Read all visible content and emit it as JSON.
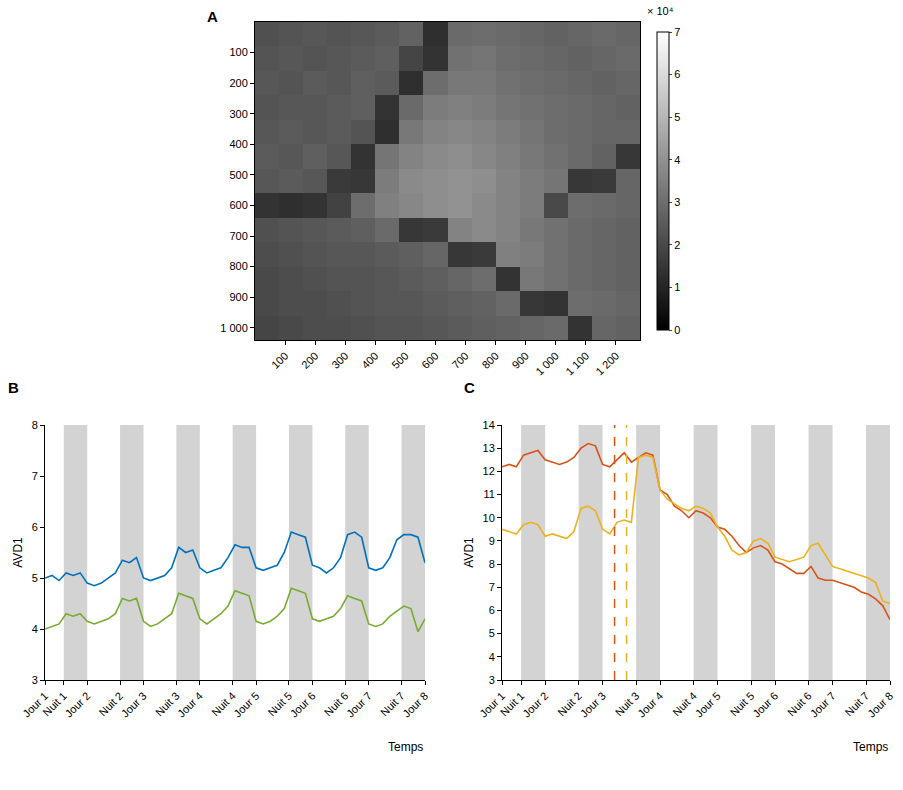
{
  "chart_data": [
    {
      "type": "heatmap",
      "title": "A",
      "x": [
        40,
        120,
        200,
        280,
        360,
        440,
        520,
        600,
        680,
        760,
        840,
        920,
        1000,
        1080,
        1160,
        1240
      ],
      "y": [
        40,
        120,
        200,
        280,
        360,
        440,
        520,
        600,
        680,
        760,
        840,
        920,
        1000
      ],
      "z": [
        [
          2.2,
          2.3,
          2.4,
          2.3,
          2.4,
          2.5,
          2.7,
          1.3,
          2.9,
          3.0,
          2.9,
          2.8,
          2.7,
          2.8,
          2.9,
          2.8
        ],
        [
          2.3,
          2.4,
          2.3,
          2.4,
          2.5,
          2.6,
          1.9,
          1.4,
          3.1,
          3.2,
          3.0,
          2.9,
          2.8,
          2.7,
          2.8,
          2.9
        ],
        [
          2.4,
          2.3,
          2.5,
          2.4,
          2.6,
          2.5,
          1.3,
          3.0,
          3.3,
          3.3,
          3.1,
          3.0,
          2.9,
          2.8,
          2.7,
          2.8
        ],
        [
          2.3,
          2.4,
          2.4,
          2.5,
          2.6,
          1.4,
          2.9,
          3.4,
          3.5,
          3.4,
          3.2,
          3.1,
          3.0,
          2.9,
          2.8,
          2.7
        ],
        [
          2.4,
          2.5,
          2.4,
          2.5,
          2.3,
          1.3,
          3.3,
          3.6,
          3.7,
          3.6,
          3.4,
          3.2,
          3.0,
          2.9,
          2.8,
          2.8
        ],
        [
          2.5,
          2.4,
          2.6,
          2.4,
          1.4,
          3.2,
          3.6,
          3.8,
          3.9,
          3.7,
          3.5,
          3.3,
          3.1,
          2.9,
          2.7,
          1.5
        ],
        [
          2.4,
          2.5,
          2.4,
          1.6,
          1.5,
          3.4,
          3.8,
          3.9,
          4.0,
          3.9,
          3.6,
          3.4,
          3.2,
          1.5,
          1.6,
          2.8
        ],
        [
          1.4,
          1.3,
          1.4,
          1.8,
          3.0,
          3.5,
          3.7,
          3.9,
          4.0,
          3.8,
          3.6,
          3.4,
          2.0,
          3.0,
          2.9,
          2.8
        ],
        [
          2.2,
          2.3,
          2.4,
          2.5,
          2.6,
          2.9,
          1.5,
          1.6,
          3.6,
          3.8,
          3.6,
          3.3,
          3.1,
          2.9,
          2.8,
          2.7
        ],
        [
          2.1,
          2.2,
          2.3,
          2.4,
          2.4,
          2.5,
          2.6,
          2.8,
          1.5,
          1.6,
          3.5,
          3.4,
          3.1,
          2.9,
          2.8,
          2.7
        ],
        [
          2.0,
          2.1,
          2.2,
          2.3,
          2.3,
          2.4,
          2.5,
          2.6,
          2.8,
          3.0,
          1.4,
          3.3,
          3.1,
          2.9,
          2.8,
          2.7
        ],
        [
          2.0,
          2.1,
          2.1,
          2.2,
          2.3,
          2.4,
          2.4,
          2.5,
          2.6,
          2.7,
          2.9,
          1.5,
          1.4,
          3.0,
          2.9,
          2.8
        ],
        [
          1.9,
          2.0,
          2.1,
          2.1,
          2.2,
          2.3,
          2.3,
          2.4,
          2.5,
          2.6,
          2.7,
          2.8,
          2.9,
          1.4,
          2.8,
          2.7
        ]
      ],
      "colorbar": {
        "range": [
          0,
          7
        ],
        "ticks": [
          0,
          1,
          2,
          3,
          4,
          5,
          6,
          7
        ],
        "label": "× 10⁴"
      },
      "xlim": [
        0,
        1280
      ],
      "xticks": [
        100,
        200,
        300,
        400,
        500,
        600,
        700,
        800,
        900,
        {
          "value": 1000,
          "label": "1 000"
        },
        {
          "value": 1100,
          "label": "1 100"
        },
        {
          "value": 1200,
          "label": "1 200"
        }
      ],
      "ylim": [
        1040,
        0
      ],
      "yticks": [
        100,
        200,
        300,
        400,
        500,
        600,
        700,
        800,
        900,
        {
          "value": 1000,
          "label": "1 000"
        }
      ],
      "grid": false
    },
    {
      "type": "line",
      "title": "B",
      "x_label": "Temps",
      "y_label": "AVD1",
      "x": [
        0,
        3,
        6,
        9,
        12,
        15,
        18,
        21,
        24,
        27,
        30,
        33,
        36,
        39,
        42,
        45,
        48,
        51,
        54,
        57,
        60,
        63,
        66,
        69,
        72,
        75,
        78,
        81,
        84,
        87,
        90,
        93,
        96,
        99,
        102,
        105,
        108,
        111,
        114,
        117,
        120,
        123,
        126,
        129,
        132,
        135,
        138,
        141,
        144,
        147,
        150,
        153,
        156,
        159,
        162
      ],
      "series": [
        {
          "color": "#0072BD",
          "values": [
            5.0,
            5.05,
            4.95,
            5.1,
            5.05,
            5.1,
            4.9,
            4.85,
            4.9,
            5.0,
            5.1,
            5.35,
            5.3,
            5.4,
            5.0,
            4.95,
            5.0,
            5.05,
            5.2,
            5.6,
            5.5,
            5.55,
            5.2,
            5.1,
            5.15,
            5.2,
            5.4,
            5.65,
            5.6,
            5.6,
            5.2,
            5.15,
            5.2,
            5.25,
            5.5,
            5.9,
            5.85,
            5.8,
            5.25,
            5.2,
            5.1,
            5.2,
            5.4,
            5.85,
            5.9,
            5.8,
            5.2,
            5.15,
            5.2,
            5.4,
            5.75,
            5.85,
            5.85,
            5.8,
            5.3
          ]
        },
        {
          "color": "#77AC30",
          "values": [
            4.0,
            4.05,
            4.1,
            4.3,
            4.25,
            4.3,
            4.15,
            4.1,
            4.15,
            4.2,
            4.3,
            4.6,
            4.55,
            4.6,
            4.15,
            4.05,
            4.1,
            4.2,
            4.3,
            4.7,
            4.65,
            4.6,
            4.2,
            4.1,
            4.2,
            4.3,
            4.45,
            4.75,
            4.7,
            4.65,
            4.15,
            4.1,
            4.15,
            4.25,
            4.4,
            4.8,
            4.75,
            4.7,
            4.2,
            4.15,
            4.2,
            4.25,
            4.4,
            4.65,
            4.6,
            4.55,
            4.1,
            4.05,
            4.1,
            4.25,
            4.35,
            4.45,
            4.4,
            3.95,
            4.2
          ]
        }
      ],
      "night_bands": [
        [
          8,
          18
        ],
        [
          32,
          42
        ],
        [
          56,
          66
        ],
        [
          80,
          90
        ],
        [
          104,
          114
        ],
        [
          128,
          138
        ],
        [
          152,
          162
        ]
      ],
      "xlim": [
        0,
        162
      ],
      "xticks": [
        {
          "value": 0,
          "label": "Jour 1"
        },
        {
          "value": 8,
          "label": "Nuit 1"
        },
        {
          "value": 18,
          "label": "Jour 2"
        },
        {
          "value": 32,
          "label": "Nuit 2"
        },
        {
          "value": 42,
          "label": "Jour 3"
        },
        {
          "value": 56,
          "label": "Nuit 3"
        },
        {
          "value": 66,
          "label": "Jour 4"
        },
        {
          "value": 80,
          "label": "Nuit 4"
        },
        {
          "value": 90,
          "label": "Jour 5"
        },
        {
          "value": 104,
          "label": "Nuit 5"
        },
        {
          "value": 114,
          "label": "Jour 6"
        },
        {
          "value": 128,
          "label": "Nuit 6"
        },
        {
          "value": 138,
          "label": "Jour 7"
        },
        {
          "value": 152,
          "label": "Nuit 7"
        },
        {
          "value": 162,
          "label": "Jour 8"
        }
      ],
      "ylim": [
        3,
        8
      ],
      "yticks": [
        3,
        4,
        5,
        6,
        7,
        8
      ],
      "grid": false
    },
    {
      "type": "line",
      "title": "C",
      "x_label": "Temps",
      "y_label": "AVD1",
      "x": [
        0,
        3,
        6,
        9,
        12,
        15,
        18,
        21,
        24,
        27,
        30,
        33,
        36,
        39,
        42,
        45,
        48,
        51,
        54,
        57,
        60,
        63,
        66,
        69,
        72,
        75,
        78,
        81,
        84,
        87,
        90,
        93,
        96,
        99,
        102,
        105,
        108,
        111,
        114,
        117,
        120,
        123,
        126,
        129,
        132,
        135,
        138,
        141,
        144,
        147,
        150,
        153,
        156,
        159,
        162
      ],
      "series": [
        {
          "color": "#D95319",
          "values": [
            12.2,
            12.3,
            12.2,
            12.7,
            12.8,
            12.9,
            12.5,
            12.4,
            12.3,
            12.4,
            12.6,
            13.0,
            13.2,
            13.1,
            12.3,
            12.2,
            12.5,
            12.8,
            12.4,
            12.6,
            12.8,
            12.7,
            11.2,
            11.0,
            10.5,
            10.3,
            10.0,
            10.3,
            10.2,
            10.0,
            9.6,
            9.5,
            9.2,
            8.8,
            8.5,
            8.7,
            8.8,
            8.6,
            8.1,
            8.0,
            7.8,
            7.6,
            7.6,
            7.9,
            7.4,
            7.3,
            7.3,
            7.2,
            7.1,
            7.0,
            6.8,
            6.7,
            6.5,
            6.2,
            5.6
          ]
        },
        {
          "color": "#EDB120",
          "values": [
            9.5,
            9.4,
            9.3,
            9.7,
            9.8,
            9.7,
            9.2,
            9.3,
            9.2,
            9.1,
            9.4,
            10.4,
            10.5,
            10.3,
            9.5,
            9.3,
            9.8,
            9.9,
            9.8,
            12.6,
            12.7,
            12.6,
            11.2,
            10.8,
            10.6,
            10.4,
            10.3,
            10.5,
            10.4,
            10.2,
            9.6,
            9.2,
            8.6,
            8.4,
            8.5,
            9.0,
            9.1,
            8.9,
            8.3,
            8.2,
            8.1,
            8.2,
            8.3,
            8.8,
            8.9,
            8.4,
            7.9,
            7.8,
            7.7,
            7.6,
            7.5,
            7.4,
            7.2,
            6.4,
            6.3
          ]
        }
      ],
      "night_bands": [
        [
          8,
          18
        ],
        [
          32,
          42
        ],
        [
          56,
          66
        ],
        [
          80,
          90
        ],
        [
          104,
          114
        ],
        [
          128,
          138
        ],
        [
          152,
          162
        ]
      ],
      "vertical_lines": [
        {
          "x": 47,
          "color": "#D95319"
        },
        {
          "x": 52,
          "color": "#EDB120"
        }
      ],
      "xlim": [
        0,
        162
      ],
      "xticks": [
        {
          "value": 0,
          "label": "Jour 1"
        },
        {
          "value": 8,
          "label": "Nuit 1"
        },
        {
          "value": 18,
          "label": "Jour 2"
        },
        {
          "value": 32,
          "label": "Nuit 2"
        },
        {
          "value": 42,
          "label": "Jour 3"
        },
        {
          "value": 56,
          "label": "Nuit 3"
        },
        {
          "value": 66,
          "label": "Jour 4"
        },
        {
          "value": 80,
          "label": "Nuit 4"
        },
        {
          "value": 90,
          "label": "Jour 5"
        },
        {
          "value": 104,
          "label": "Nuit 5"
        },
        {
          "value": 114,
          "label": "Jour 6"
        },
        {
          "value": 128,
          "label": "Nuit 6"
        },
        {
          "value": 138,
          "label": "Jour 7"
        },
        {
          "value": 152,
          "label": "Nuit 7"
        },
        {
          "value": 162,
          "label": "Jour 8"
        }
      ],
      "ylim": [
        3,
        14
      ],
      "yticks": [
        3,
        4,
        5,
        6,
        7,
        8,
        9,
        10,
        11,
        12,
        13,
        14
      ],
      "grid": false
    }
  ]
}
